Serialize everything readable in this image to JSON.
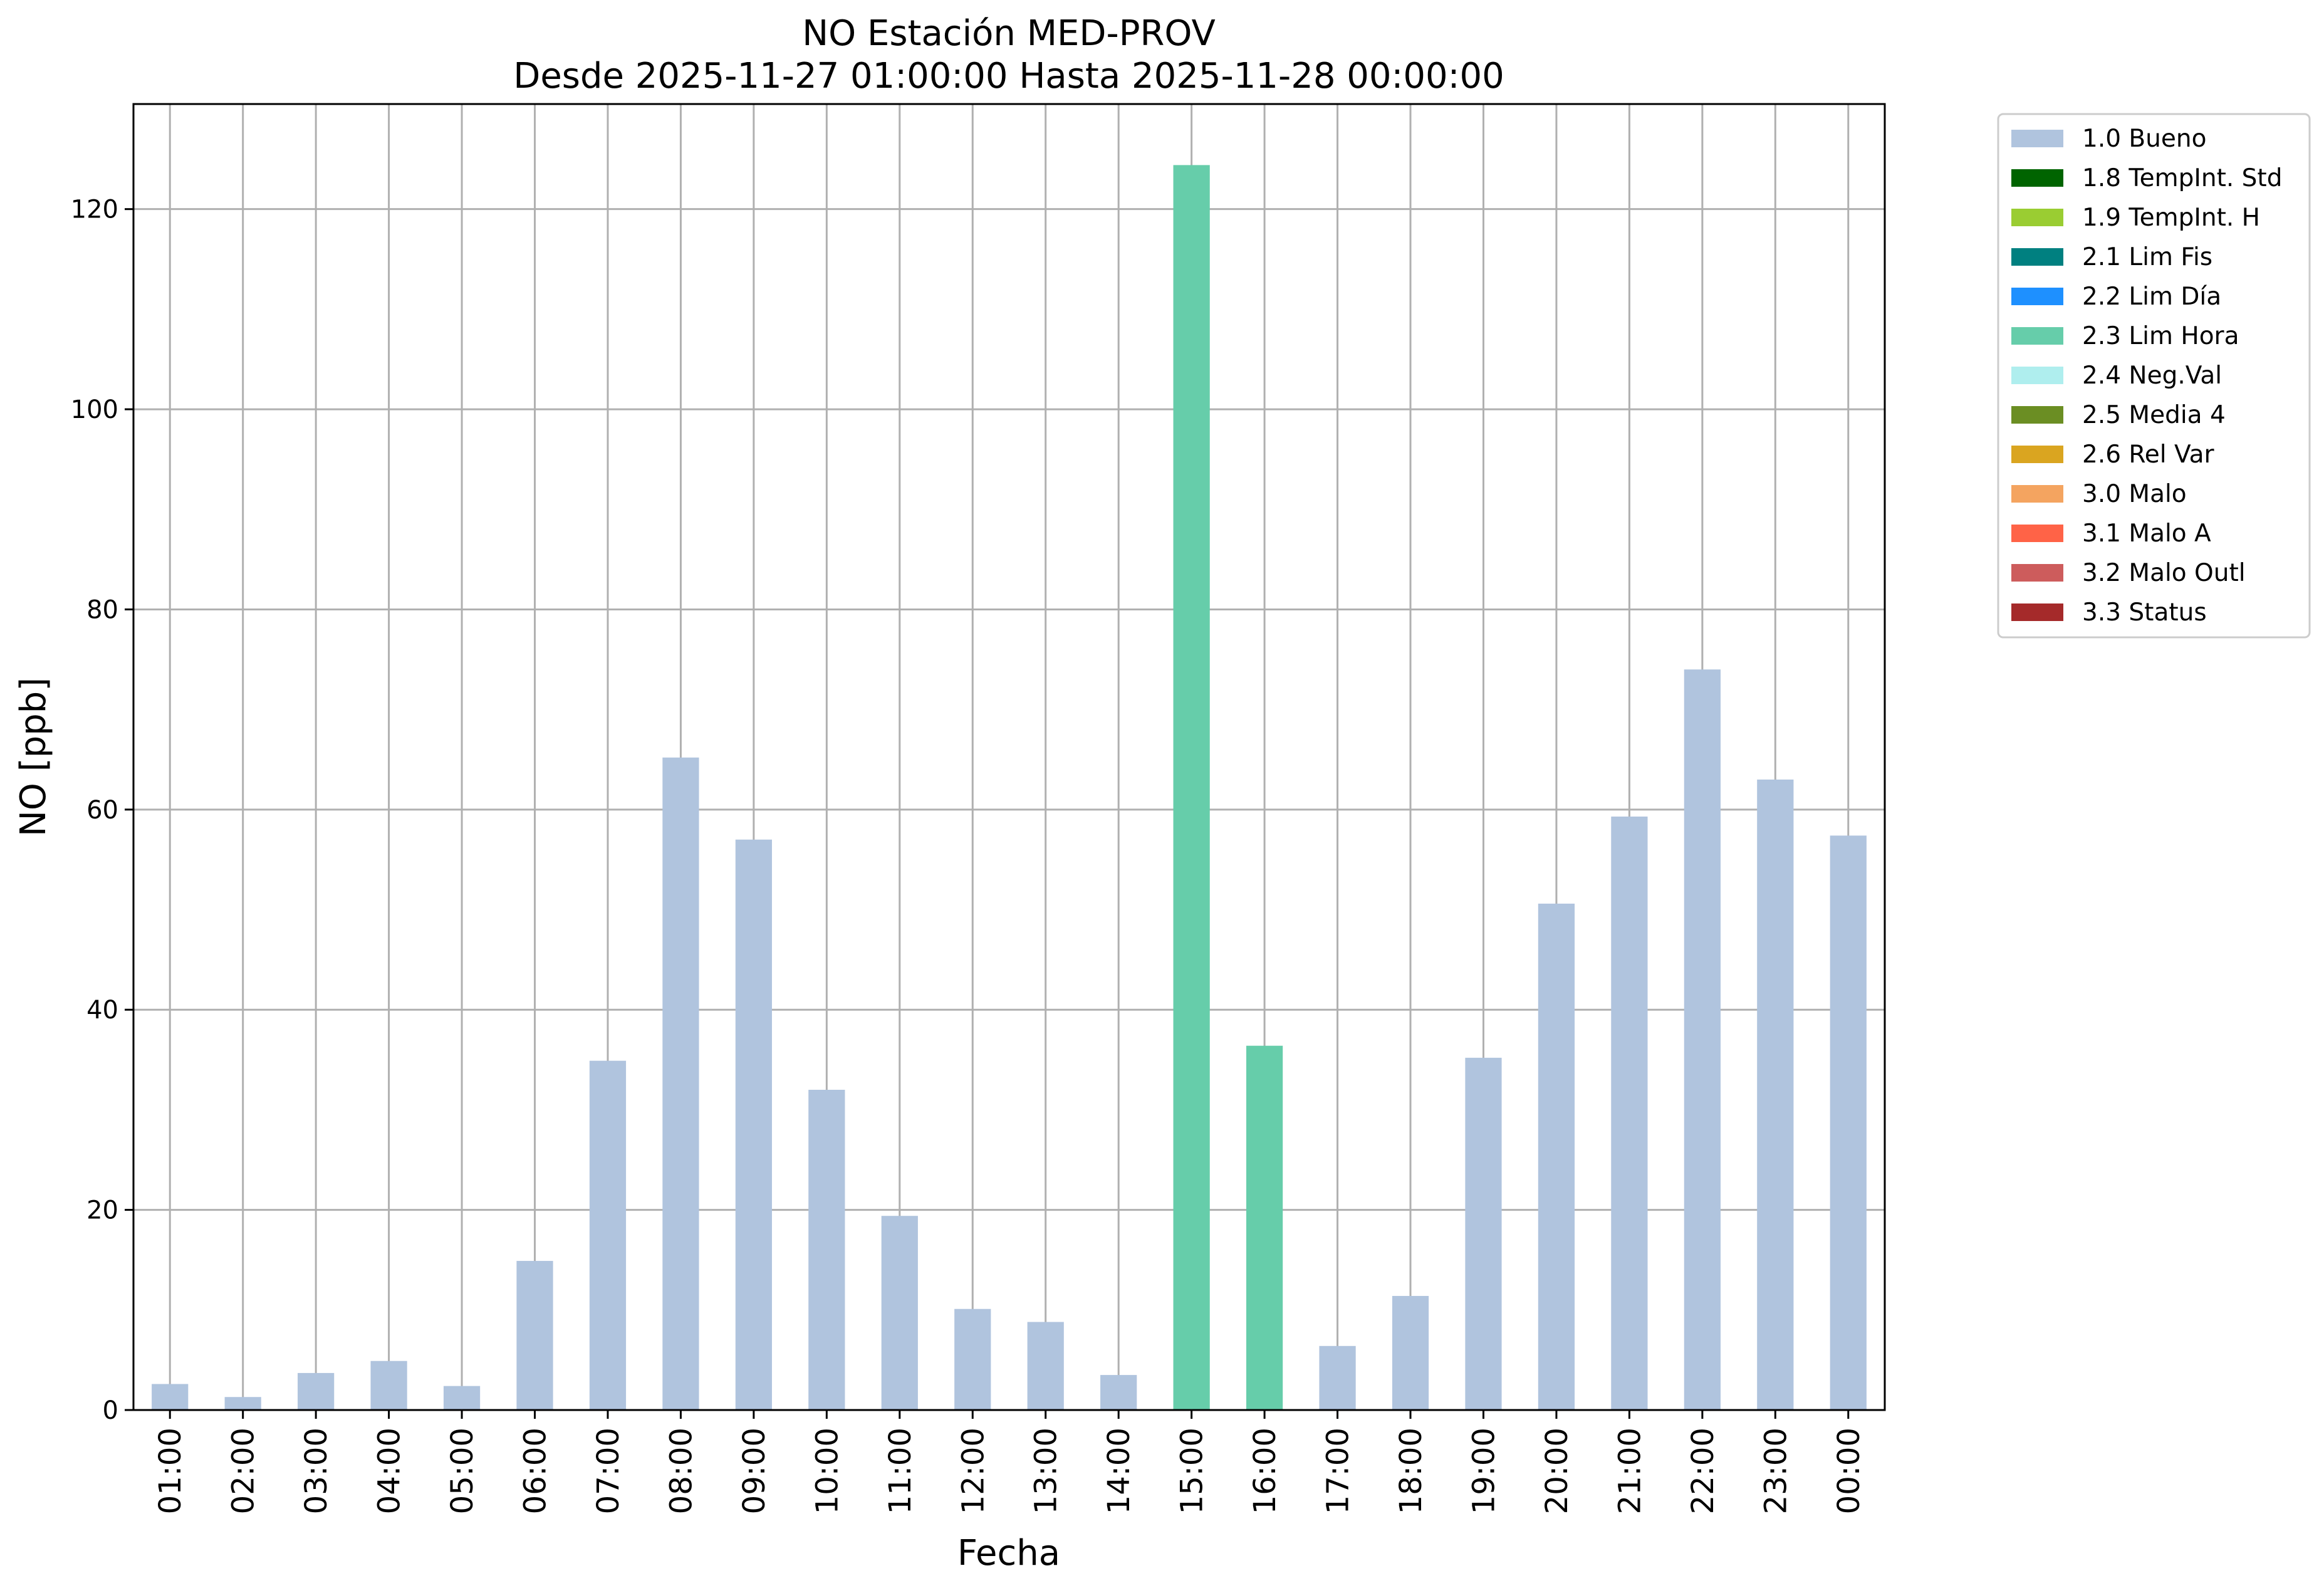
{
  "chart_data": {
    "type": "bar",
    "title": "NO Estación MED-PROV",
    "subtitle": "Desde 2025-11-27 01:00:00 Hasta 2025-11-28 00:00:00",
    "xlabel": "Fecha",
    "ylabel": "NO [ppb]",
    "ylim": [
      0,
      130.5
    ],
    "yticks": [
      0,
      20,
      40,
      60,
      80,
      100,
      120
    ],
    "grid": true,
    "legend_position": "outside-top-right",
    "categories": [
      "01:00",
      "02:00",
      "03:00",
      "04:00",
      "05:00",
      "06:00",
      "07:00",
      "08:00",
      "09:00",
      "10:00",
      "11:00",
      "12:00",
      "13:00",
      "14:00",
      "15:00",
      "16:00",
      "17:00",
      "18:00",
      "19:00",
      "20:00",
      "21:00",
      "22:00",
      "23:00",
      "00:00"
    ],
    "values": [
      2.6,
      1.3,
      3.7,
      4.9,
      2.4,
      14.9,
      34.9,
      65.2,
      57.0,
      32.0,
      19.4,
      10.1,
      8.8,
      3.5,
      124.4,
      36.4,
      6.4,
      11.4,
      35.2,
      50.6,
      59.3,
      74.0,
      63.0,
      57.4
    ],
    "flags": [
      "1.0 Bueno",
      "1.0 Bueno",
      "1.0 Bueno",
      "1.0 Bueno",
      "1.0 Bueno",
      "1.0 Bueno",
      "1.0 Bueno",
      "1.0 Bueno",
      "1.0 Bueno",
      "1.0 Bueno",
      "1.0 Bueno",
      "1.0 Bueno",
      "1.0 Bueno",
      "1.0 Bueno",
      "2.3 Lim Hora",
      "2.3 Lim Hora",
      "1.0 Bueno",
      "1.0 Bueno",
      "1.0 Bueno",
      "1.0 Bueno",
      "1.0 Bueno",
      "1.0 Bueno",
      "1.0 Bueno",
      "1.0 Bueno"
    ],
    "legend": [
      {
        "label": "1.0 Bueno",
        "color": "#b0c4de"
      },
      {
        "label": "1.8 TempInt. Std",
        "color": "#006400"
      },
      {
        "label": "1.9 TempInt. H",
        "color": "#9acd32"
      },
      {
        "label": "2.1 Lim Fis",
        "color": "#008080"
      },
      {
        "label": "2.2 Lim Día",
        "color": "#1e90ff"
      },
      {
        "label": "2.3 Lim Hora",
        "color": "#66cdaa"
      },
      {
        "label": "2.4 Neg.Val",
        "color": "#afeeee"
      },
      {
        "label": "2.5 Media 4",
        "color": "#6b8e23"
      },
      {
        "label": "2.6 Rel Var",
        "color": "#daa520"
      },
      {
        "label": "3.0 Malo",
        "color": "#f4a460"
      },
      {
        "label": "3.1 Malo A",
        "color": "#ff6347"
      },
      {
        "label": "3.2 Malo Outl",
        "color": "#cd5c5c"
      },
      {
        "label": "3.3 Status",
        "color": "#a52a2a"
      }
    ]
  }
}
